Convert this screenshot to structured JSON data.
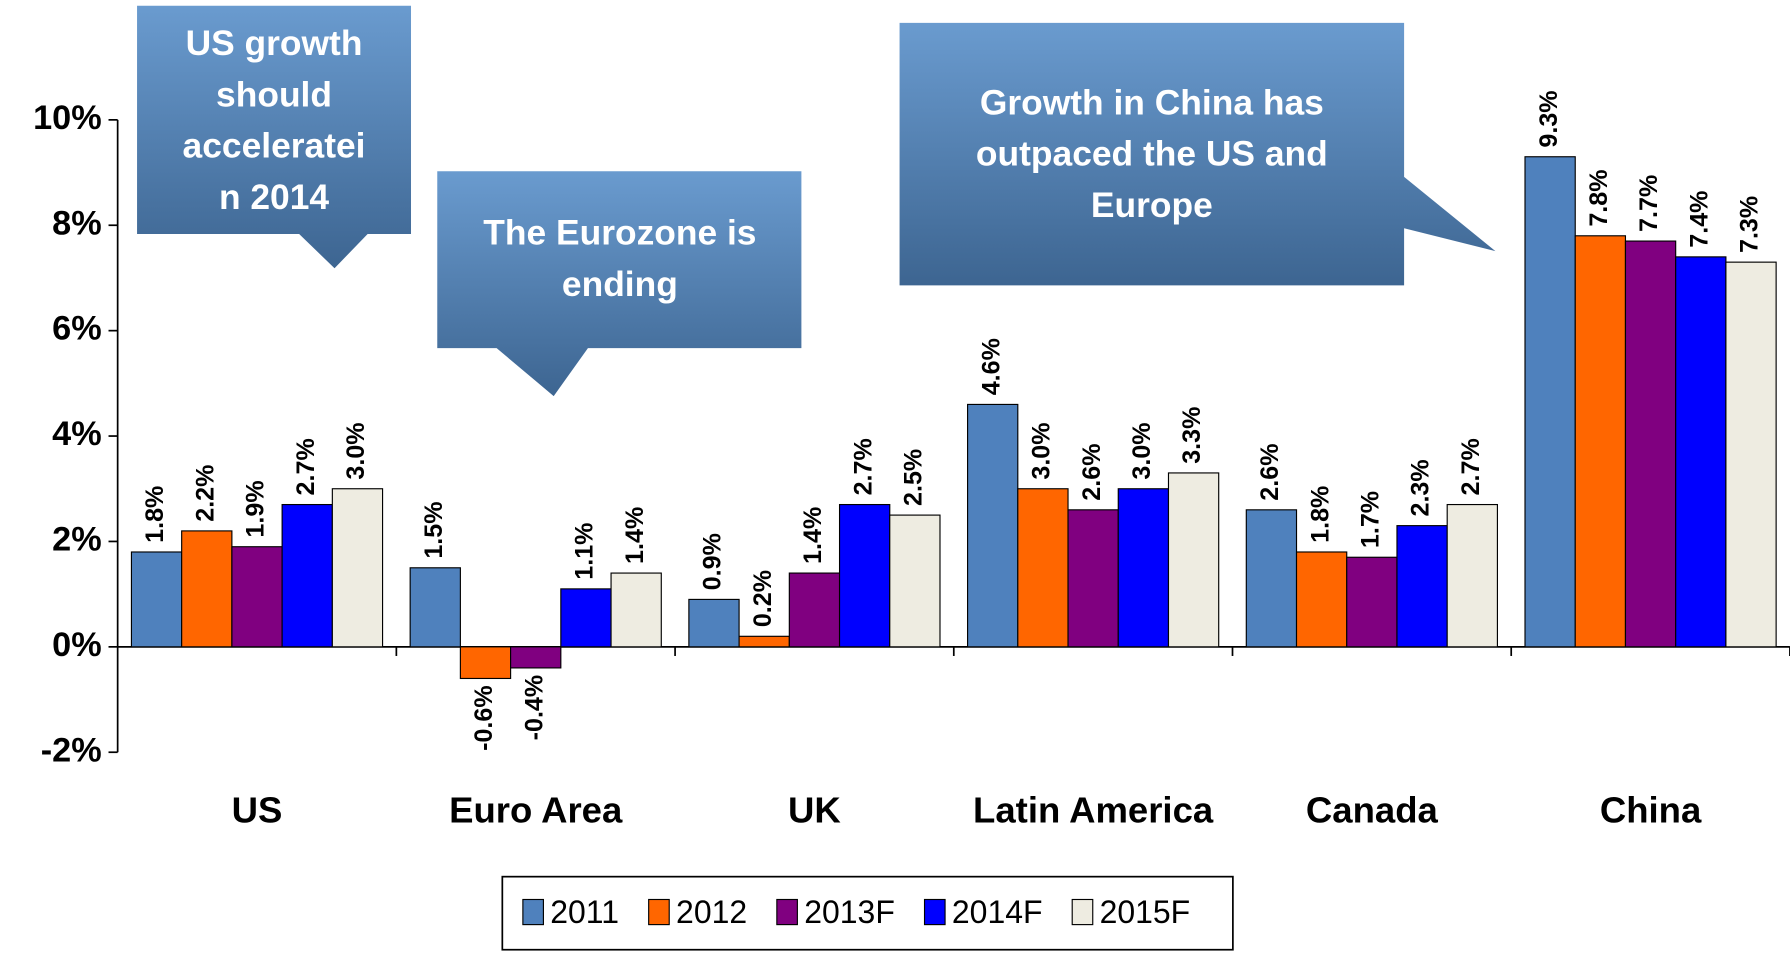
{
  "chart_data": {
    "type": "bar",
    "categories": [
      "US",
      "Euro Area",
      "UK",
      "Latin America",
      "Canada",
      "China"
    ],
    "series": [
      {
        "name": "2011",
        "color": "#4f81bd",
        "values": [
          1.8,
          1.5,
          0.9,
          4.6,
          2.6,
          9.3
        ],
        "value_labels": [
          "1.8%",
          "1.5%",
          "0.9%",
          "4.6%",
          "2.6%",
          "9.3%"
        ]
      },
      {
        "name": "2012",
        "color": "#ff6600",
        "values": [
          2.2,
          -0.6,
          0.2,
          3.0,
          1.8,
          7.8
        ],
        "value_labels": [
          "2.2%",
          "-0.6%",
          "0.2%",
          "3.0%",
          "1.8%",
          "7.8%"
        ]
      },
      {
        "name": "2013F",
        "color": "#800080",
        "values": [
          1.9,
          -0.4,
          1.4,
          2.6,
          1.7,
          7.7
        ],
        "value_labels": [
          "1.9%",
          "-0.4%",
          "1.4%",
          "2.6%",
          "1.7%",
          "7.7%"
        ]
      },
      {
        "name": "2014F",
        "color": "#0000ff",
        "values": [
          2.7,
          1.1,
          2.7,
          3.0,
          2.3,
          7.4
        ],
        "value_labels": [
          "2.7%",
          "1.1%",
          "2.7%",
          "3.0%",
          "2.3%",
          "7.4%"
        ]
      },
      {
        "name": "2015F",
        "color": "#eeece1",
        "values": [
          3.0,
          1.4,
          2.5,
          3.3,
          2.7,
          7.3
        ],
        "value_labels": [
          "3.0%",
          "1.4%",
          "2.5%",
          "3.3%",
          "2.7%",
          "7.3%"
        ]
      }
    ],
    "ylim": [
      -2,
      10
    ],
    "yticks": [
      {
        "value": -2,
        "label": "-2%"
      },
      {
        "value": 0,
        "label": "0%"
      },
      {
        "value": 2,
        "label": "2%"
      },
      {
        "value": 4,
        "label": "4%"
      },
      {
        "value": 6,
        "label": "6%"
      },
      {
        "value": 8,
        "label": "8%"
      },
      {
        "value": 10,
        "label": "10%"
      }
    ],
    "legend": "bottom",
    "annotations": [
      {
        "lines": [
          "US growth",
          "should",
          "acceleratei",
          "n  2014"
        ]
      },
      {
        "lines": [
          "The Eurozone is",
          "ending"
        ]
      },
      {
        "lines": [
          "Growth in China has",
          "outpaced the US and",
          "Europe"
        ]
      }
    ]
  }
}
